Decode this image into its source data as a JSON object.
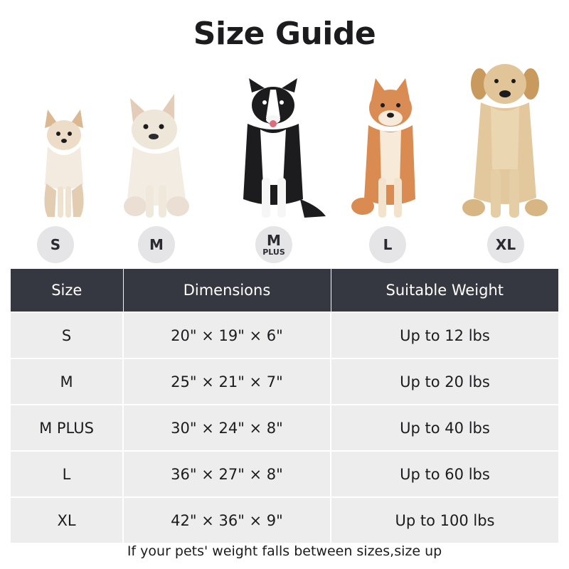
{
  "title": "Size Guide",
  "size_badges": [
    {
      "main": "S",
      "sub": ""
    },
    {
      "main": "M",
      "sub": ""
    },
    {
      "main": "M",
      "sub": "PLUS"
    },
    {
      "main": "L",
      "sub": ""
    },
    {
      "main": "XL",
      "sub": ""
    }
  ],
  "dogs": [
    {
      "breed_icon": "chihuahua-dog-icon",
      "coat": "#e8d8c4",
      "accent": "#d9b892"
    },
    {
      "breed_icon": "french-bulldog-dog-icon",
      "coat": "#efe6da",
      "accent": "#e3cdb8"
    },
    {
      "breed_icon": "border-collie-dog-icon",
      "coat": "#1c1c1e",
      "accent": "#ffffff"
    },
    {
      "breed_icon": "shiba-inu-dog-icon",
      "coat": "#d98b52",
      "accent": "#f7ead8"
    },
    {
      "breed_icon": "golden-retriever-dog-icon",
      "coat": "#e1c497",
      "accent": "#c99a5e"
    }
  ],
  "table": {
    "headers": [
      "Size",
      "Dimensions",
      "Suitable Weight"
    ],
    "rows": [
      [
        "S",
        "20\" × 19\" × 6\"",
        "Up to 12 lbs"
      ],
      [
        "M",
        "25\" × 21\" × 7\"",
        "Up to 20 lbs"
      ],
      [
        "M PLUS",
        "30\" × 24\" × 8\"",
        "Up to 40 lbs"
      ],
      [
        "L",
        "36\" × 27\" × 8\"",
        "Up to 60 lbs"
      ],
      [
        "XL",
        "42\" × 36\" × 9\"",
        "Up to 100 lbs"
      ]
    ]
  },
  "footnote": "If your pets' weight falls between sizes,size up",
  "colors": {
    "header_bg": "#363841",
    "row_bg": "#ededee",
    "badge_bg": "#e5e5e7"
  }
}
